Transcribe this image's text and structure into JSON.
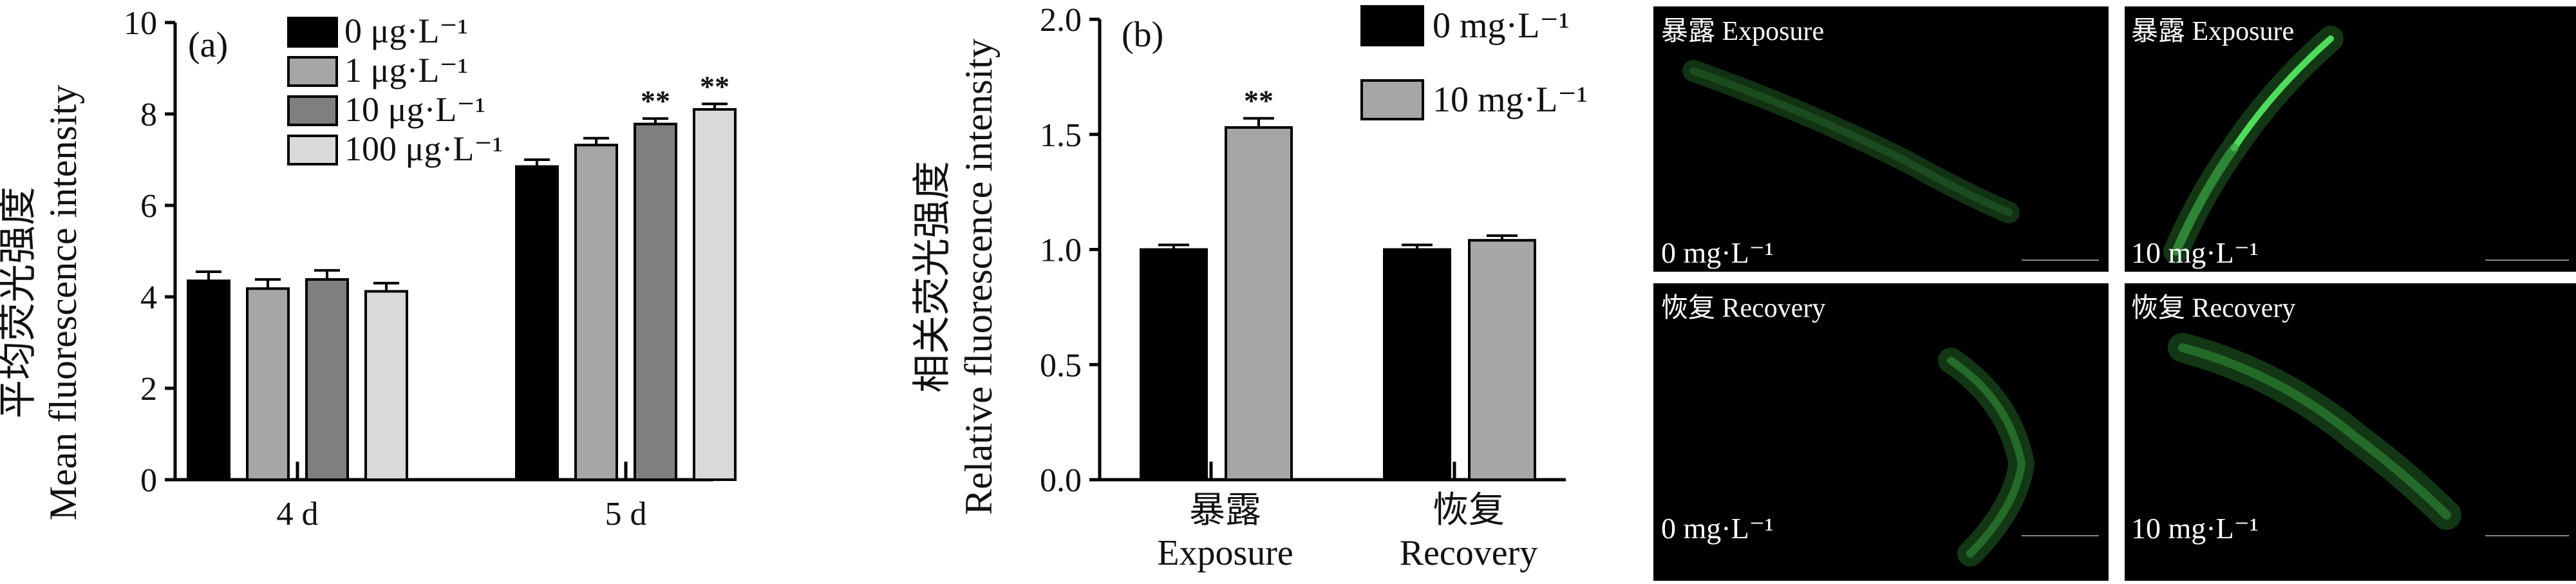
{
  "chart_data": [
    {
      "type": "bar",
      "panel_label": "(a)",
      "ylabel_cn": "平均荧光强度",
      "ylabel_en": "Mean fluorescence intensity",
      "ylim": [
        0,
        10
      ],
      "yticks": [
        "0",
        "2",
        "4",
        "6",
        "8",
        "10"
      ],
      "categories": [
        "4 d",
        "5 d"
      ],
      "legend_position": "top-left",
      "series": [
        {
          "name": "0 μg·L⁻¹",
          "color": "#000000",
          "values": [
            4.35,
            6.85
          ],
          "errors": [
            0.2,
            0.15
          ],
          "significance": [
            "",
            ""
          ]
        },
        {
          "name": "1 μg·L⁻¹",
          "color": "#a6a6a6",
          "values": [
            4.18,
            7.32
          ],
          "errors": [
            0.2,
            0.15
          ],
          "significance": [
            "",
            ""
          ]
        },
        {
          "name": "10 μg·L⁻¹",
          "color": "#7f7f7f",
          "values": [
            4.38,
            7.78
          ],
          "errors": [
            0.2,
            0.12
          ],
          "significance": [
            "",
            "**"
          ]
        },
        {
          "name": "100 μg·L⁻¹",
          "color": "#d9d9d9",
          "values": [
            4.12,
            8.1
          ],
          "errors": [
            0.18,
            0.12
          ],
          "significance": [
            "",
            "**"
          ]
        }
      ]
    },
    {
      "type": "bar",
      "panel_label": "(b)",
      "ylabel_cn": "相关荧光强度",
      "ylabel_en": "Relative fluorescence intensity",
      "ylim": [
        0,
        2
      ],
      "yticks": [
        "0.0",
        "0.5",
        "1.0",
        "1.5",
        "2.0"
      ],
      "categories": [
        {
          "cn": "暴露",
          "en": "Exposure"
        },
        {
          "cn": "恢复",
          "en": "Recovery"
        }
      ],
      "legend_position": "top-right",
      "series": [
        {
          "name": "0 mg·L⁻¹",
          "color": "#000000",
          "values": [
            1.0,
            1.0
          ],
          "errors": [
            0.02,
            0.02
          ],
          "significance": [
            "",
            ""
          ]
        },
        {
          "name": "10 mg·L⁻¹",
          "color": "#a6a6a6",
          "values": [
            1.53,
            1.04
          ],
          "errors": [
            0.04,
            0.02
          ],
          "significance": [
            "**",
            ""
          ]
        }
      ]
    }
  ],
  "micrographs": [
    {
      "title": "暴露 Exposure",
      "label": "0 mg·L⁻¹",
      "accent": "#3cb84a"
    },
    {
      "title": "暴露 Exposure",
      "label": "10 mg·L⁻¹",
      "accent": "#3cb84a"
    },
    {
      "title": "恢复 Recovery",
      "label": "0 mg·L⁻¹",
      "accent": "#3cb84a"
    },
    {
      "title": "恢复 Recovery",
      "label": "10 mg·L⁻¹",
      "accent": "#3cb84a"
    }
  ]
}
